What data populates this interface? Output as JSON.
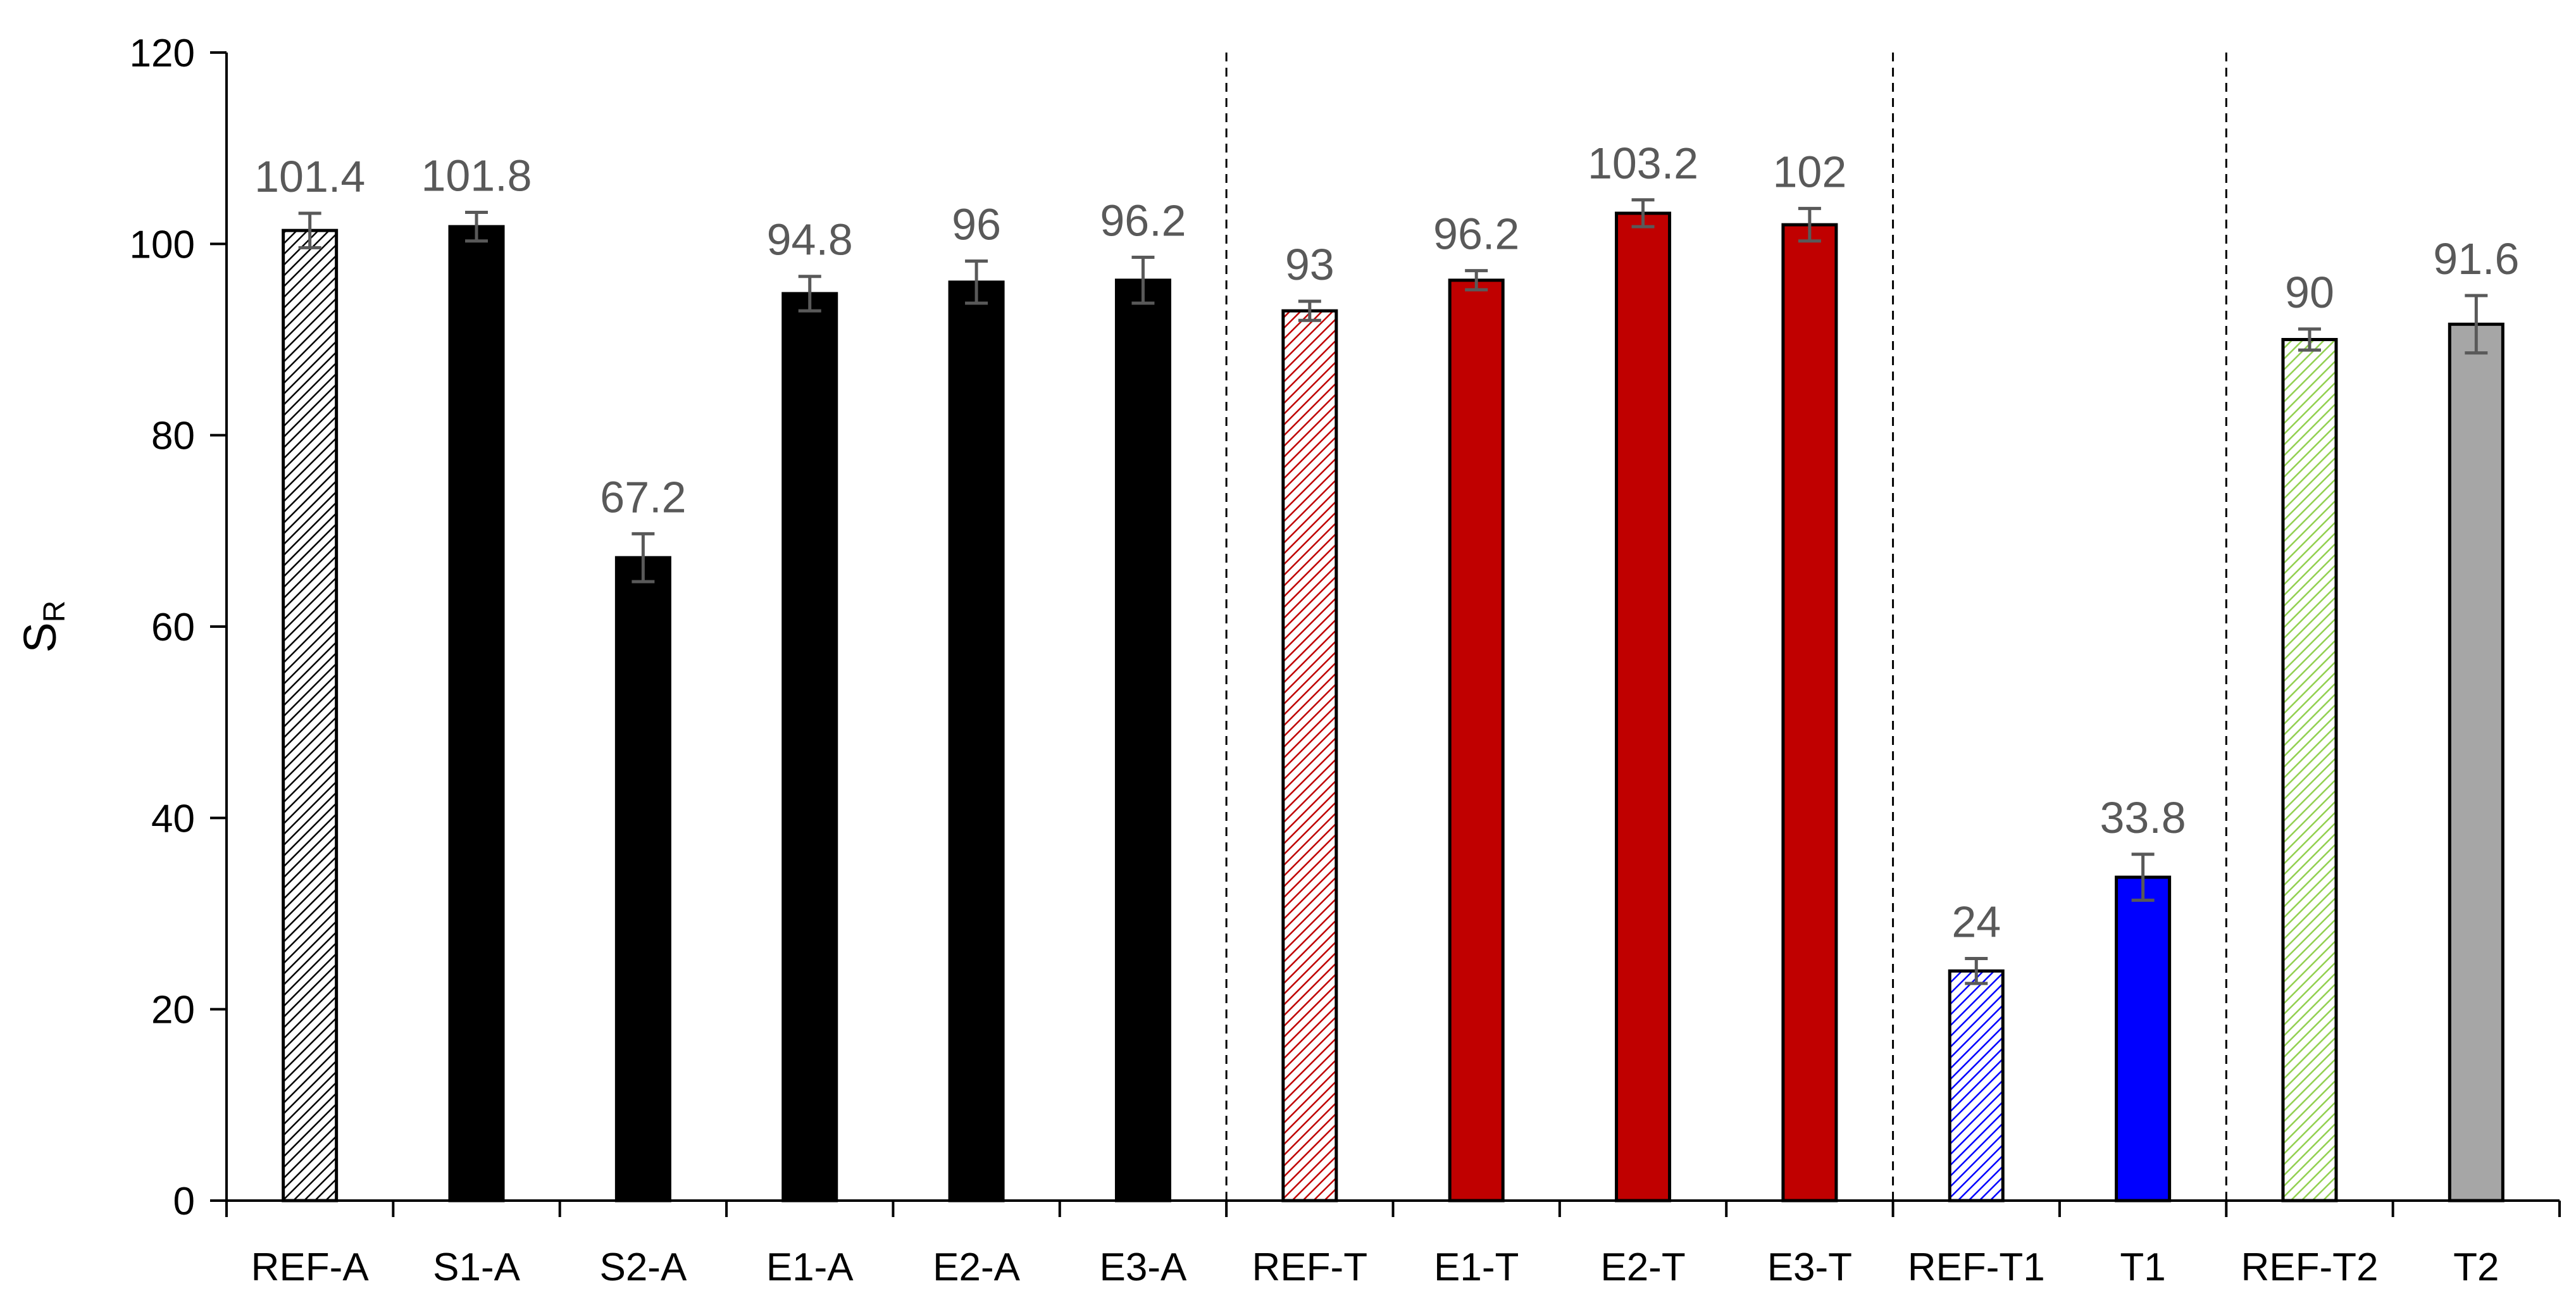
{
  "chart_data": {
    "type": "bar",
    "title": "",
    "xlabel": "",
    "ylabel": "S",
    "ylabel_subscript": "R",
    "ylim": [
      0,
      120
    ],
    "yticks": [
      0,
      20,
      40,
      60,
      80,
      100,
      120
    ],
    "grid": false,
    "legend": "none",
    "categories": [
      "REF-A",
      "S1-A",
      "S2-A",
      "E1-A",
      "E2-A",
      "E3-A",
      "REF-T",
      "E1-T",
      "E2-T",
      "E3-T",
      "REF-T1",
      "T1",
      "REF-T2",
      "T2"
    ],
    "values": [
      101.4,
      101.8,
      67.2,
      94.8,
      96,
      96.2,
      93,
      96.2,
      103.2,
      102,
      24,
      33.8,
      90,
      91.6
    ],
    "value_labels": [
      "101.4",
      "101.8",
      "67.2",
      "94.8",
      "96",
      "96.2",
      "93",
      "96.2",
      "103.2",
      "102",
      "24",
      "33.8",
      "90",
      "91.6"
    ],
    "errors": [
      1.8,
      1.5,
      2.5,
      1.8,
      2.2,
      2.4,
      1.0,
      1.0,
      1.4,
      1.7,
      1.3,
      2.4,
      1.1,
      3.0
    ],
    "fills": [
      "hatch",
      "solid",
      "solid",
      "solid",
      "solid",
      "solid",
      "hatch",
      "solid",
      "solid",
      "solid",
      "hatch",
      "solid",
      "hatch",
      "solid"
    ],
    "colors": [
      "#000000",
      "#000000",
      "#000000",
      "#000000",
      "#000000",
      "#000000",
      "#c00000",
      "#c00000",
      "#c00000",
      "#c00000",
      "#0000ff",
      "#0000ff",
      "#92d050",
      "#a6a6a6"
    ],
    "group_separators_after": [
      "E3-A",
      "E3-T",
      "T1"
    ]
  }
}
